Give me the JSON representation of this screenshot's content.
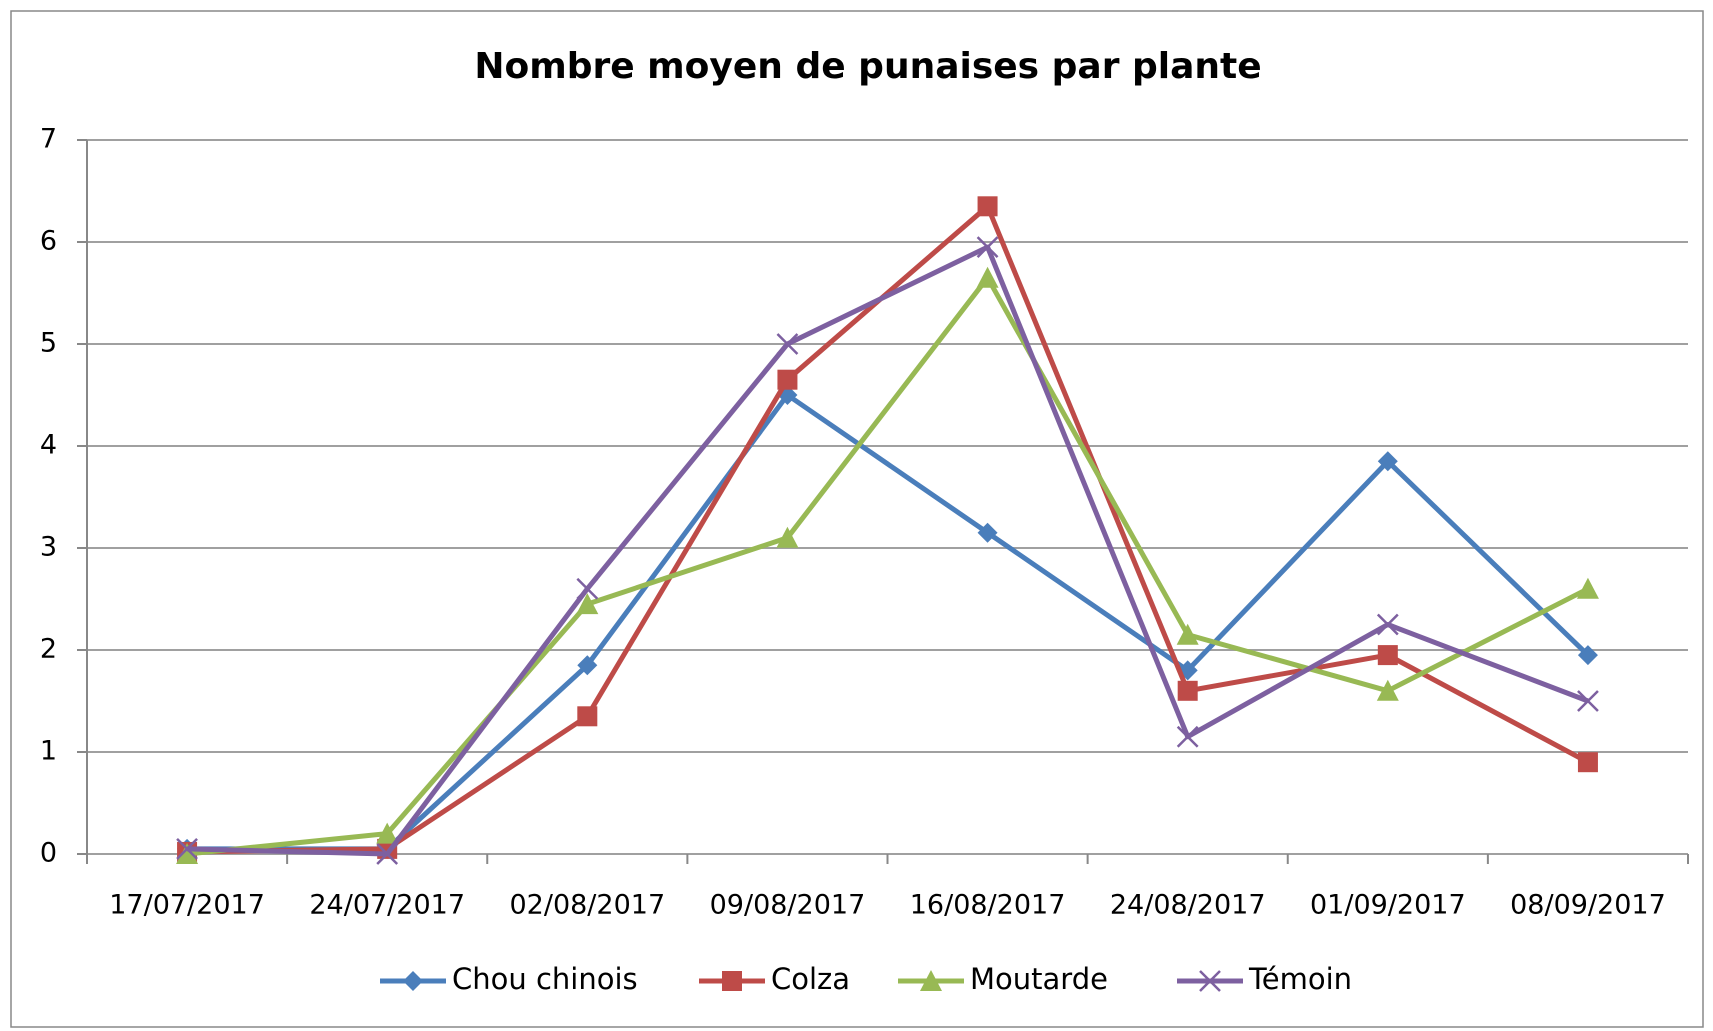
{
  "chart_data": {
    "type": "line",
    "title": "Nombre moyen de punaises par plante",
    "categories": [
      "17/07/2017",
      "24/07/2017",
      "02/08/2017",
      "09/08/2017",
      "16/08/2017",
      "24/08/2017",
      "01/09/2017",
      "08/09/2017"
    ],
    "series": [
      {
        "name": "Chou chinois",
        "color": "#4a7ebb",
        "marker": "diamond",
        "values": [
          0.05,
          0.05,
          1.85,
          4.5,
          3.15,
          1.8,
          3.85,
          1.95
        ]
      },
      {
        "name": "Colza",
        "color": "#be4b48",
        "marker": "square",
        "values": [
          0.02,
          0.05,
          1.35,
          4.65,
          6.35,
          1.6,
          1.95,
          0.9
        ]
      },
      {
        "name": "Moutarde",
        "color": "#98b954",
        "marker": "triangle",
        "values": [
          0,
          0.2,
          2.45,
          3.1,
          5.65,
          2.15,
          1.6,
          2.6
        ]
      },
      {
        "name": "Témoin",
        "color": "#7d60a0",
        "marker": "x",
        "values": [
          0.05,
          0,
          2.6,
          5.0,
          5.95,
          1.15,
          2.25,
          1.5
        ]
      }
    ],
    "ylim": [
      0,
      7
    ],
    "yticks": [
      0,
      1,
      2,
      3,
      4,
      5,
      6,
      7
    ],
    "grid": true,
    "legend": "bottom"
  }
}
